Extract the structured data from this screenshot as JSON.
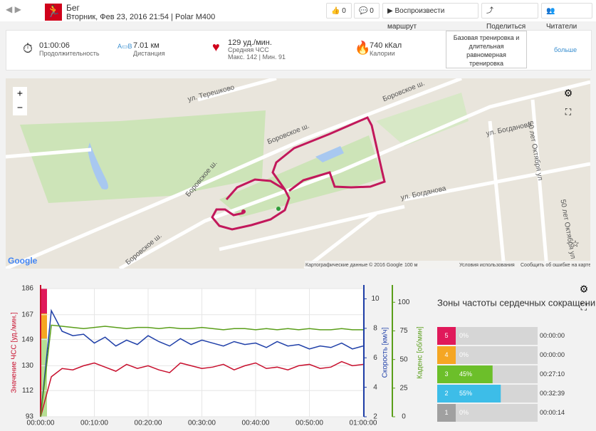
{
  "header": {
    "sport": "Бег",
    "subtitle": "Вторник, Фев 23, 2016 21:54 | Polar M400",
    "likes": 0,
    "comments": 0,
    "play": "Воспроизвести маршрут",
    "share": "Поделиться",
    "readers": "Читатели"
  },
  "summary": {
    "duration": "01:00:06",
    "duration_label": "Продолжительность",
    "distance": "7.01 км",
    "distance_label": "Дистанция",
    "hr": "129 уд./мин.",
    "hr_label": "Средняя ЧСС",
    "hr_max": "Макс. 142",
    "hr_min": "Мин. 91",
    "calories": "740 кКал",
    "calories_label": "Калории",
    "benefit": "Базовая тренировка и длительная равномерная тренировка",
    "more": "больше"
  },
  "map": {
    "labels": [
      "ул. Терешково",
      "Боровское ш.",
      "Боровское ш.",
      "Боровское ш.",
      "Боровское ш.",
      "ул. Богданова",
      "ул. Богданова",
      "50 лет Октября ул",
      "50 лет Октября ул",
      "Google",
      "Картографические данные © 2016 Google",
      "100 м",
      "Условия использования",
      "Сообщить об ошибке на карте"
    ]
  },
  "chart_data": {
    "type": "line",
    "x": [
      0,
      2,
      4,
      6,
      8,
      10,
      12,
      14,
      16,
      18,
      20,
      22,
      24,
      26,
      28,
      30,
      32,
      34,
      36,
      38,
      40,
      42,
      44,
      46,
      48,
      50,
      52,
      54,
      56,
      58,
      60
    ],
    "xlim": [
      0,
      60
    ],
    "xticks": [
      {
        "value": 0,
        "label": "00:00:00"
      },
      {
        "value": 10,
        "label": "00:10:00"
      },
      {
        "value": 20,
        "label": "00:20:00"
      },
      {
        "value": 30,
        "label": "00:30:00"
      },
      {
        "value": 40,
        "label": "00:40:00"
      },
      {
        "value": 50,
        "label": "00:50:00"
      },
      {
        "value": 60,
        "label": "01:00:00"
      }
    ],
    "ylabel": "Значение ЧСС [уд./мин.]",
    "ylim": [
      93,
      186
    ],
    "yticks": [
      93,
      112,
      130,
      149,
      167,
      186
    ],
    "y2label": "Скорость [км/ч]",
    "y2lim": [
      2,
      10.7
    ],
    "y2ticks": [
      2,
      4,
      6,
      8,
      10
    ],
    "y3label": "Каденс [об/мин]",
    "y3lim": [
      0,
      112
    ],
    "y3ticks": [
      0,
      25,
      50,
      75,
      100
    ],
    "series": [
      {
        "name": "ЧСС",
        "color": "#c8102e",
        "axis": "y",
        "values": [
          93,
          122,
          128,
          127,
          130,
          132,
          129,
          126,
          131,
          128,
          130,
          127,
          125,
          132,
          130,
          128,
          129,
          131,
          127,
          130,
          132,
          128,
          129,
          127,
          130,
          131,
          128,
          129,
          133,
          130,
          131
        ]
      },
      {
        "name": "Скорость",
        "color": "#1f3fa8",
        "axis": "y2",
        "values": [
          2,
          9.2,
          7.8,
          7.5,
          7.6,
          7.0,
          7.4,
          6.8,
          7.2,
          6.9,
          7.5,
          7.1,
          6.8,
          7.3,
          6.9,
          7.2,
          7.0,
          6.8,
          7.1,
          6.9,
          7.0,
          6.7,
          7.1,
          6.8,
          6.9,
          6.6,
          6.8,
          6.7,
          7.0,
          6.6,
          6.8
        ]
      },
      {
        "name": "Каденс",
        "color": "#5a9e1a",
        "axis": "y3",
        "values": [
          0,
          80,
          79,
          78,
          77,
          78,
          79,
          78,
          77,
          78,
          78,
          77,
          78,
          77,
          77,
          78,
          77,
          76,
          77,
          77,
          76,
          77,
          76,
          77,
          76,
          77,
          76,
          76,
          77,
          76,
          76
        ]
      }
    ]
  },
  "zones": {
    "title": "Зоны частоты сердечных сокращений",
    "rows": [
      {
        "zone": 5,
        "value": 0,
        "label": "0%",
        "time": "00:00:00",
        "color": "#e0195a"
      },
      {
        "zone": 4,
        "value": 0,
        "label": "0%",
        "time": "00:00:00",
        "color": "#f5a623"
      },
      {
        "zone": 3,
        "value": 45,
        "label": "45%",
        "time": "00:27:10",
        "color": "#6cbf2a"
      },
      {
        "zone": 2,
        "value": 55,
        "label": "55%",
        "time": "00:32:39",
        "color": "#3dbde8"
      },
      {
        "zone": 1,
        "value": 0,
        "label": "0%",
        "time": "00:00:14",
        "color": "#a0a0a0"
      }
    ]
  }
}
